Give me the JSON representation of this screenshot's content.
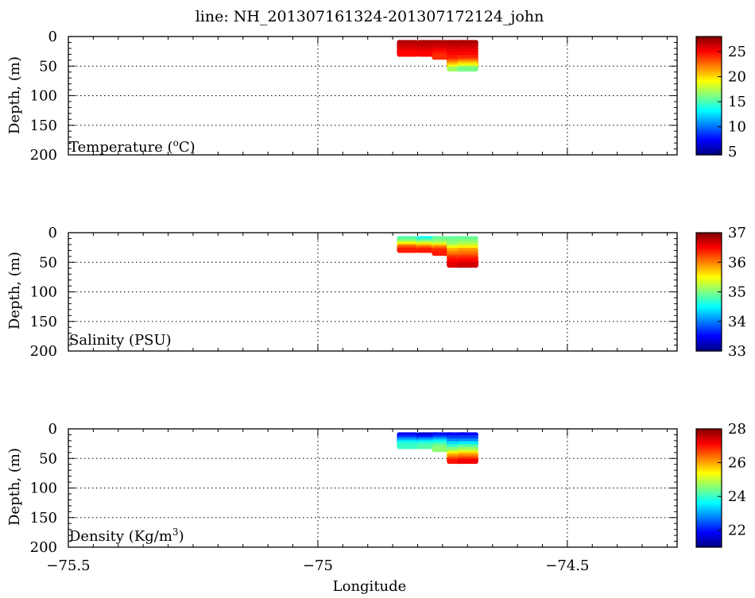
{
  "title": "line: NH_201307161324-201307172124_john",
  "xlabel": "Longitude",
  "chart_data": [
    {
      "type": "scatter",
      "panel_label": "Temperature (°C)",
      "panel_label_main": "Temperature (",
      "panel_label_sup": "o",
      "panel_label_tail": "C)",
      "ylabel": "Depth, (m)",
      "xlim": [
        -75.5,
        -74.28
      ],
      "ylim": [
        200,
        0
      ],
      "x_ticks": [
        -75.5,
        -75,
        -74.5
      ],
      "x_tick_labels": [
        "−75.5",
        "−75",
        "−74.5"
      ],
      "y_ticks": [
        0,
        50,
        100,
        150,
        200
      ],
      "grid": "dotted",
      "colorbar": {
        "range": [
          4.4,
          28
        ],
        "ticks": [
          5,
          10,
          15,
          20,
          25
        ]
      },
      "series": [
        {
          "lon": -74.82,
          "depths": [
            10,
            15,
            20,
            25,
            30
          ],
          "values": [
            27,
            26.5,
            26,
            25.5,
            25
          ]
        },
        {
          "lon": -74.78,
          "depths": [
            10,
            15,
            20,
            25,
            30
          ],
          "values": [
            27,
            26.6,
            26.2,
            25.6,
            25
          ]
        },
        {
          "lon": -74.75,
          "depths": [
            10,
            15,
            20,
            25,
            30,
            35
          ],
          "values": [
            27,
            26.5,
            26,
            25.2,
            24.5,
            24
          ]
        },
        {
          "lon": -74.72,
          "depths": [
            10,
            20,
            30,
            40,
            45,
            50,
            55
          ],
          "values": [
            27,
            26,
            25,
            24,
            22,
            20,
            17
          ]
        },
        {
          "lon": -74.7,
          "depths": [
            10,
            20,
            30,
            40,
            45,
            50,
            55
          ],
          "values": [
            27,
            26,
            25,
            23.5,
            21,
            19,
            16
          ]
        }
      ]
    },
    {
      "type": "scatter",
      "panel_label": "Salinity (PSU)",
      "ylabel": "Depth, (m)",
      "xlim": [
        -75.5,
        -74.28
      ],
      "ylim": [
        200,
        0
      ],
      "x_ticks": [
        -75.5,
        -75,
        -74.5
      ],
      "y_ticks": [
        0,
        50,
        100,
        150,
        200
      ],
      "grid": "dotted",
      "colorbar": {
        "range": [
          33,
          37
        ],
        "ticks": [
          33,
          34,
          35,
          36,
          37
        ]
      },
      "series": [
        {
          "lon": -74.82,
          "depths": [
            10,
            15,
            20,
            25,
            30
          ],
          "values": [
            34.8,
            35,
            35.5,
            36.1,
            36.4
          ]
        },
        {
          "lon": -74.78,
          "depths": [
            10,
            15,
            20,
            25,
            30
          ],
          "values": [
            34.5,
            34.9,
            35.4,
            36,
            36.4
          ]
        },
        {
          "lon": -74.75,
          "depths": [
            10,
            15,
            20,
            25,
            30,
            35
          ],
          "values": [
            34.9,
            35,
            35.3,
            35.9,
            36.3,
            36.4
          ]
        },
        {
          "lon": -74.72,
          "depths": [
            10,
            20,
            30,
            40,
            45,
            50,
            55
          ],
          "values": [
            34.9,
            35.1,
            35.8,
            36.2,
            36.4,
            36.5,
            36.6
          ]
        },
        {
          "lon": -74.7,
          "depths": [
            10,
            20,
            30,
            40,
            45,
            50,
            55
          ],
          "values": [
            34.9,
            35.2,
            35.9,
            36.2,
            36.4,
            36.5,
            36.7
          ]
        }
      ]
    },
    {
      "type": "scatter",
      "panel_label": "Density (Kg/m³)",
      "panel_label_main": "Density (Kg/m",
      "panel_label_sup": "3",
      "panel_label_tail": ")",
      "ylabel": "Depth, (m)",
      "xlim": [
        -75.5,
        -74.28
      ],
      "ylim": [
        200,
        0
      ],
      "x_ticks": [
        -75.5,
        -75,
        -74.5
      ],
      "y_ticks": [
        0,
        50,
        100,
        150,
        200
      ],
      "grid": "dotted",
      "colorbar": {
        "range": [
          21,
          28
        ],
        "ticks": [
          22,
          24,
          26,
          28
        ]
      },
      "series": [
        {
          "lon": -74.82,
          "depths": [
            10,
            15,
            20,
            25,
            30
          ],
          "values": [
            21.8,
            22.2,
            23,
            23.8,
            24
          ]
        },
        {
          "lon": -74.78,
          "depths": [
            10,
            15,
            20,
            25,
            30
          ],
          "values": [
            21.5,
            22,
            23,
            23.8,
            24.2
          ]
        },
        {
          "lon": -74.75,
          "depths": [
            10,
            15,
            20,
            25,
            30,
            35
          ],
          "values": [
            21.8,
            22.3,
            23.2,
            23.9,
            24.4,
            24.6
          ]
        },
        {
          "lon": -74.72,
          "depths": [
            10,
            20,
            30,
            40,
            45,
            50,
            55
          ],
          "values": [
            21.8,
            22.8,
            24,
            25,
            25.8,
            26.4,
            27
          ]
        },
        {
          "lon": -74.7,
          "depths": [
            10,
            20,
            30,
            40,
            45,
            50,
            55
          ],
          "values": [
            21.8,
            22.8,
            24.2,
            25.2,
            26,
            26.5,
            27.2
          ]
        }
      ]
    }
  ]
}
